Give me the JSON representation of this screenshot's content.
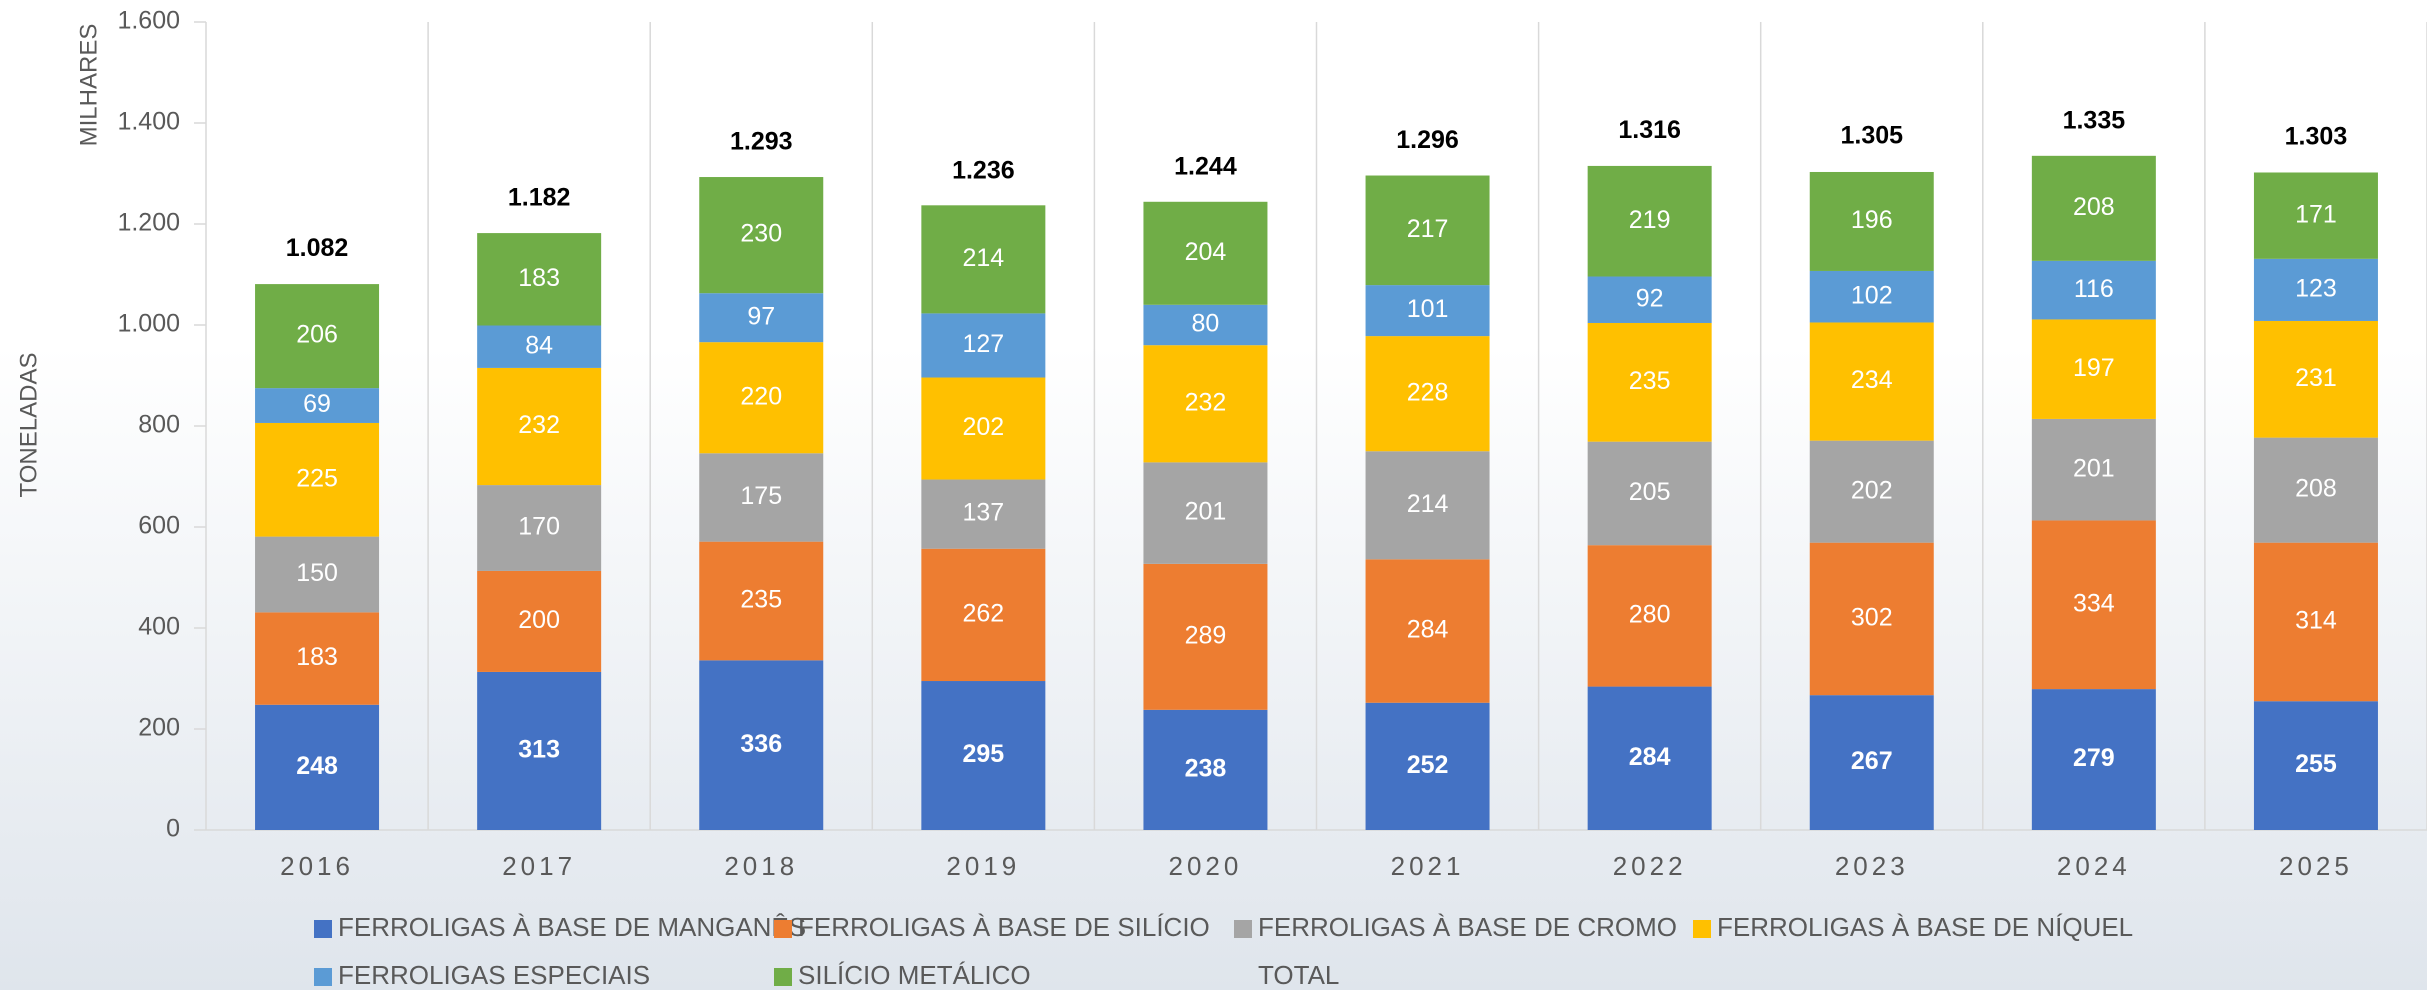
{
  "chart_data": {
    "type": "stacked_bar",
    "y_axis_title": "TONELADAS",
    "y_axis_unit": "MILHARES",
    "categories": [
      "2016",
      "2017",
      "2018",
      "2019",
      "2020",
      "2021",
      "2022",
      "2023",
      "2024",
      "2025"
    ],
    "series": [
      {
        "name": "FERROLIGAS À BASE DE MANGANÊS",
        "color": "#4472c4",
        "values": [
          248,
          313,
          336,
          295,
          238,
          252,
          284,
          267,
          279,
          255
        ]
      },
      {
        "name": "FERROLIGAS À BASE DE SILÍCIO",
        "color": "#ed7d31",
        "values": [
          183,
          200,
          235,
          262,
          289,
          284,
          280,
          302,
          334,
          314
        ]
      },
      {
        "name": "FERROLIGAS À BASE DE CROMO",
        "color": "#a5a5a5",
        "values": [
          150,
          170,
          175,
          137,
          201,
          214,
          205,
          202,
          201,
          208
        ]
      },
      {
        "name": "FERROLIGAS À BASE DE NÍQUEL",
        "color": "#ffc000",
        "values": [
          225,
          232,
          220,
          202,
          232,
          228,
          235,
          234,
          197,
          231
        ]
      },
      {
        "name": "FERROLIGAS ESPECIAIS",
        "color": "#5b9bd5",
        "values": [
          69,
          84,
          97,
          127,
          80,
          101,
          92,
          102,
          116,
          123
        ]
      },
      {
        "name": "SILÍCIO METÁLICO",
        "color": "#70ad47",
        "values": [
          206,
          183,
          230,
          214,
          204,
          217,
          219,
          196,
          208,
          171
        ]
      },
      {
        "name": "TOTAL",
        "values": [
          1082,
          1182,
          1293,
          1236,
          1244,
          1296,
          1316,
          1305,
          1335,
          1303
        ],
        "value_labels": [
          "1.082",
          "1.182",
          "1.293",
          "1.236",
          "1.244",
          "1.296",
          "1.316",
          "1.305",
          "1.335",
          "1.303"
        ]
      }
    ],
    "ylim": [
      0,
      1600
    ],
    "yticks": [
      0,
      200,
      400,
      600,
      800,
      {
        "value": 1000,
        "label": "1.000"
      },
      {
        "value": 1200,
        "label": "1.200"
      },
      {
        "value": 1400,
        "label": "1.400"
      },
      {
        "value": 1600,
        "label": "1.600"
      }
    ],
    "legend": "bottom"
  }
}
